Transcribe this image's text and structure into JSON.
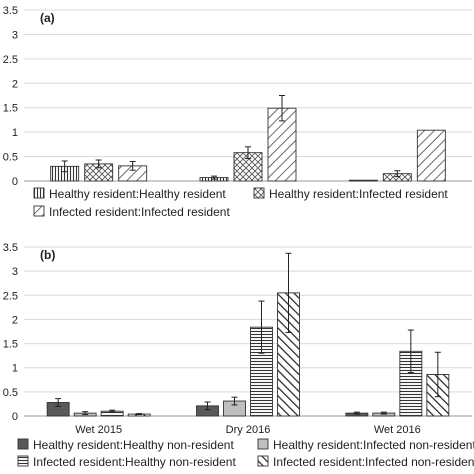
{
  "chart_data": [
    {
      "type": "bar",
      "panel_label": "(a)",
      "categories": [
        "",
        "",
        ""
      ],
      "ylim": [
        0,
        3.5
      ],
      "yticks": [
        "0",
        "0.5",
        "1",
        "1.5",
        "2",
        "2.5",
        "3",
        "3.5"
      ],
      "grid": true,
      "legend_position": "bottom",
      "series": [
        {
          "name": "Healthy resident:Healthy resident",
          "pattern": "vlines",
          "values": [
            0.3,
            0.07,
            0.01
          ],
          "errors": [
            0.11,
            0.03,
            0.0
          ]
        },
        {
          "name": "Healthy resident:Infected resident",
          "pattern": "diamonds",
          "values": [
            0.35,
            0.58,
            0.15
          ],
          "errors": [
            0.08,
            0.12,
            0.06
          ]
        },
        {
          "name": "Infected resident:Infected resident",
          "pattern": "diag-wide",
          "values": [
            0.31,
            1.49,
            1.04
          ],
          "errors": [
            0.09,
            0.26,
            0.0
          ]
        }
      ]
    },
    {
      "type": "bar",
      "panel_label": "(b)",
      "categories": [
        "Wet 2015",
        "Dry 2016",
        "Wet 2016"
      ],
      "ylim": [
        0,
        3.5
      ],
      "yticks": [
        "0",
        "0.5",
        "1",
        "1.5",
        "2",
        "2.5",
        "3",
        "3.5"
      ],
      "grid": true,
      "legend_position": "bottom",
      "series": [
        {
          "name": "Healthy resident:Healthy non-resident",
          "pattern": "dark",
          "values": [
            0.28,
            0.21,
            0.06
          ],
          "errors": [
            0.08,
            0.08,
            0.02
          ]
        },
        {
          "name": "Healthy resident:Infected non-resident",
          "pattern": "light",
          "values": [
            0.06,
            0.31,
            0.06
          ],
          "errors": [
            0.03,
            0.08,
            0.02
          ]
        },
        {
          "name": "Infected resident:Healthy non-resident",
          "pattern": "hlines",
          "values": [
            0.1,
            1.84,
            1.34
          ],
          "errors": [
            0.02,
            0.54,
            0.44
          ]
        },
        {
          "name": "Infected resident:Infected non-resident",
          "pattern": "diag-bold",
          "values": [
            0.04,
            2.55,
            0.86
          ],
          "errors": [
            0.01,
            0.82,
            0.46
          ]
        }
      ]
    }
  ]
}
